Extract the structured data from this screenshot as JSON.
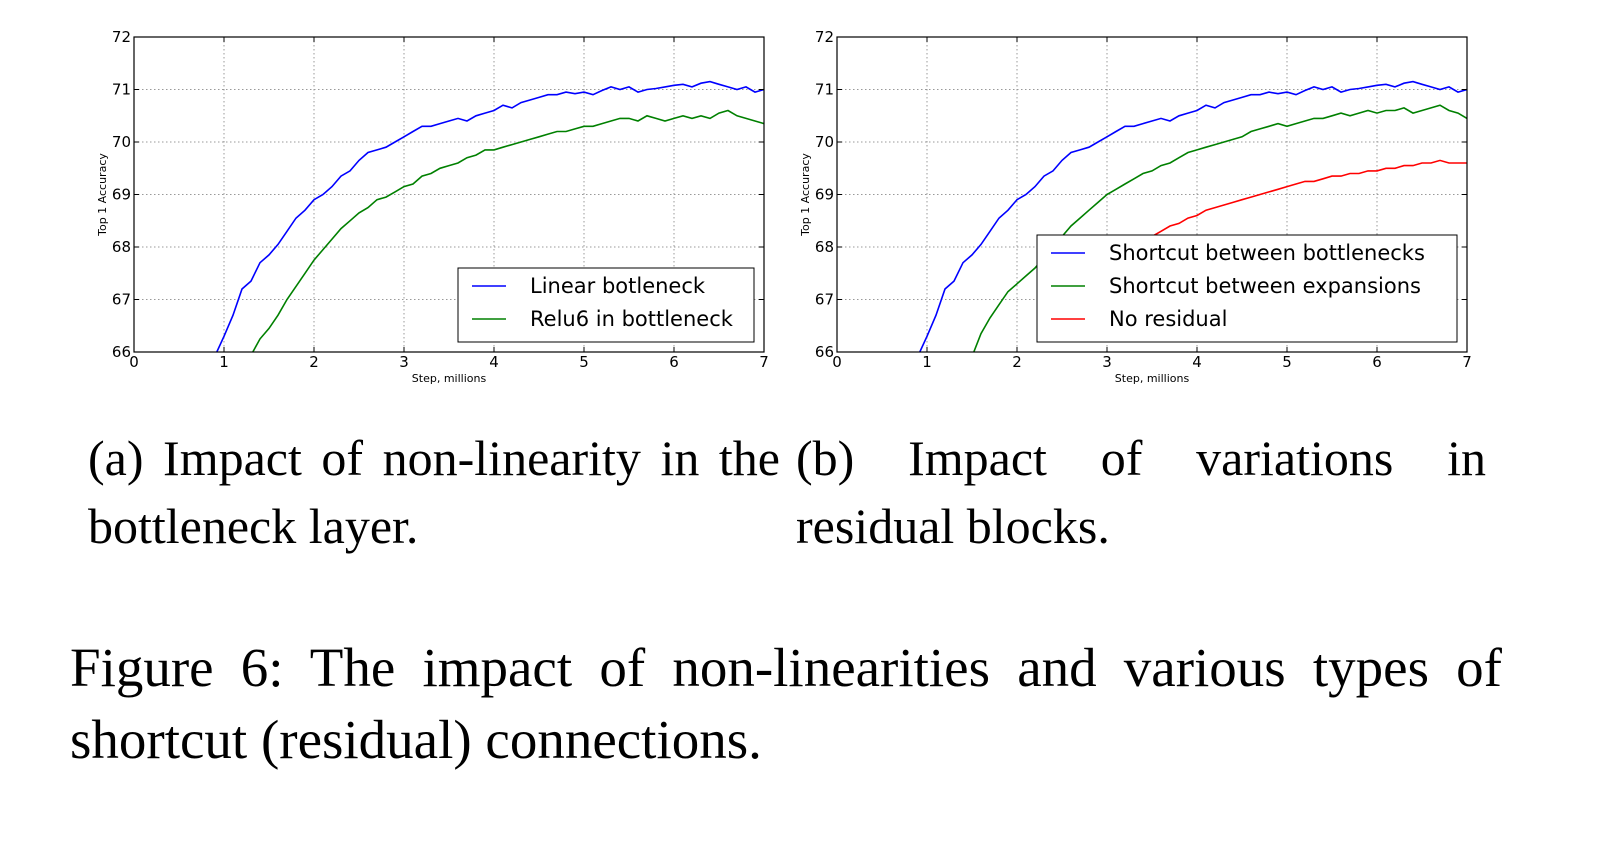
{
  "figure_caption": "Figure 6:  The impact of non-linearities and various types of shortcut (residual) connections.",
  "chart_data": [
    {
      "id": "a",
      "type": "line",
      "caption": "(a) Impact of non-linearity in the bottleneck layer.",
      "xlabel": "Step, millions",
      "ylabel": "Top 1 Accuracy",
      "xlim": [
        0,
        7
      ],
      "ylim": [
        66,
        72
      ],
      "xticks": [
        0,
        1,
        2,
        3,
        4,
        5,
        6,
        7
      ],
      "yticks": [
        66,
        67,
        68,
        69,
        70,
        71,
        72
      ],
      "grid": true,
      "legend_position": "lower-right",
      "series": [
        {
          "name": "Linear botleneck",
          "color": "#0000ff",
          "x": [
            0.92,
            1.0,
            1.1,
            1.2,
            1.3,
            1.4,
            1.5,
            1.6,
            1.7,
            1.8,
            1.9,
            2.0,
            2.1,
            2.2,
            2.3,
            2.4,
            2.5,
            2.6,
            2.7,
            2.8,
            2.9,
            3.0,
            3.1,
            3.2,
            3.3,
            3.4,
            3.5,
            3.6,
            3.7,
            3.8,
            3.9,
            4.0,
            4.1,
            4.2,
            4.3,
            4.4,
            4.5,
            4.6,
            4.7,
            4.8,
            4.9,
            5.0,
            5.1,
            5.2,
            5.3,
            5.4,
            5.5,
            5.6,
            5.7,
            5.8,
            5.9,
            6.0,
            6.1,
            6.2,
            6.3,
            6.4,
            6.5,
            6.6,
            6.7,
            6.8,
            6.9,
            7.0
          ],
          "y": [
            66.0,
            66.3,
            66.7,
            67.2,
            67.35,
            67.7,
            67.85,
            68.05,
            68.3,
            68.55,
            68.7,
            68.9,
            69.0,
            69.15,
            69.35,
            69.45,
            69.65,
            69.8,
            69.85,
            69.9,
            70.0,
            70.1,
            70.2,
            70.3,
            70.3,
            70.35,
            70.4,
            70.45,
            70.4,
            70.5,
            70.55,
            70.6,
            70.7,
            70.65,
            70.75,
            70.8,
            70.85,
            70.9,
            70.9,
            70.95,
            70.92,
            70.95,
            70.9,
            70.98,
            71.05,
            71.0,
            71.05,
            70.95,
            71.0,
            71.02,
            71.05,
            71.08,
            71.1,
            71.05,
            71.12,
            71.15,
            71.1,
            71.05,
            71.0,
            71.05,
            70.95,
            71.0
          ]
        },
        {
          "name": "Relu6 in bottleneck",
          "color": "#008000",
          "x": [
            1.32,
            1.4,
            1.5,
            1.6,
            1.7,
            1.8,
            1.9,
            2.0,
            2.1,
            2.2,
            2.3,
            2.4,
            2.5,
            2.6,
            2.7,
            2.8,
            2.9,
            3.0,
            3.1,
            3.2,
            3.3,
            3.4,
            3.5,
            3.6,
            3.7,
            3.8,
            3.9,
            4.0,
            4.1,
            4.2,
            4.3,
            4.4,
            4.5,
            4.6,
            4.7,
            4.8,
            4.9,
            5.0,
            5.1,
            5.2,
            5.3,
            5.4,
            5.5,
            5.6,
            5.7,
            5.8,
            5.9,
            6.0,
            6.1,
            6.2,
            6.3,
            6.4,
            6.5,
            6.6,
            6.7,
            6.8,
            6.9,
            7.0
          ],
          "y": [
            66.0,
            66.25,
            66.45,
            66.7,
            67.0,
            67.25,
            67.5,
            67.75,
            67.95,
            68.15,
            68.35,
            68.5,
            68.65,
            68.75,
            68.9,
            68.95,
            69.05,
            69.15,
            69.2,
            69.35,
            69.4,
            69.5,
            69.55,
            69.6,
            69.7,
            69.75,
            69.85,
            69.85,
            69.9,
            69.95,
            70.0,
            70.05,
            70.1,
            70.15,
            70.2,
            70.2,
            70.25,
            70.3,
            70.3,
            70.35,
            70.4,
            70.45,
            70.45,
            70.4,
            70.5,
            70.45,
            70.4,
            70.45,
            70.5,
            70.45,
            70.5,
            70.45,
            70.55,
            70.6,
            70.5,
            70.45,
            70.4,
            70.35
          ]
        }
      ]
    },
    {
      "id": "b",
      "type": "line",
      "caption": "(b)  Impact  of  variations  in residual blocks.",
      "xlabel": "Step, millions",
      "ylabel": "Top 1 Accuracy",
      "xlim": [
        0,
        7
      ],
      "ylim": [
        66,
        72
      ],
      "xticks": [
        0,
        1,
        2,
        3,
        4,
        5,
        6,
        7
      ],
      "yticks": [
        66,
        67,
        68,
        69,
        70,
        71,
        72
      ],
      "grid": true,
      "legend_position": "lower-right",
      "series": [
        {
          "name": "Shortcut between bottlenecks",
          "color": "#0000ff",
          "x": [
            0.92,
            1.0,
            1.1,
            1.2,
            1.3,
            1.4,
            1.5,
            1.6,
            1.7,
            1.8,
            1.9,
            2.0,
            2.1,
            2.2,
            2.3,
            2.4,
            2.5,
            2.6,
            2.7,
            2.8,
            2.9,
            3.0,
            3.1,
            3.2,
            3.3,
            3.4,
            3.5,
            3.6,
            3.7,
            3.8,
            3.9,
            4.0,
            4.1,
            4.2,
            4.3,
            4.4,
            4.5,
            4.6,
            4.7,
            4.8,
            4.9,
            5.0,
            5.1,
            5.2,
            5.3,
            5.4,
            5.5,
            5.6,
            5.7,
            5.8,
            5.9,
            6.0,
            6.1,
            6.2,
            6.3,
            6.4,
            6.5,
            6.6,
            6.7,
            6.8,
            6.9,
            7.0
          ],
          "y": [
            66.0,
            66.3,
            66.7,
            67.2,
            67.35,
            67.7,
            67.85,
            68.05,
            68.3,
            68.55,
            68.7,
            68.9,
            69.0,
            69.15,
            69.35,
            69.45,
            69.65,
            69.8,
            69.85,
            69.9,
            70.0,
            70.1,
            70.2,
            70.3,
            70.3,
            70.35,
            70.4,
            70.45,
            70.4,
            70.5,
            70.55,
            70.6,
            70.7,
            70.65,
            70.75,
            70.8,
            70.85,
            70.9,
            70.9,
            70.95,
            70.92,
            70.95,
            70.9,
            70.98,
            71.05,
            71.0,
            71.05,
            70.95,
            71.0,
            71.02,
            71.05,
            71.08,
            71.1,
            71.05,
            71.12,
            71.15,
            71.1,
            71.05,
            71.0,
            71.05,
            70.95,
            71.0
          ]
        },
        {
          "name": "Shortcut between expansions",
          "color": "#008000",
          "x": [
            1.52,
            1.6,
            1.7,
            1.8,
            1.9,
            2.0,
            2.1,
            2.2,
            2.3,
            2.4,
            2.5,
            2.6,
            2.7,
            2.8,
            2.9,
            3.0,
            3.1,
            3.2,
            3.3,
            3.4,
            3.5,
            3.6,
            3.7,
            3.8,
            3.9,
            4.0,
            4.1,
            4.2,
            4.3,
            4.4,
            4.5,
            4.6,
            4.7,
            4.8,
            4.9,
            5.0,
            5.1,
            5.2,
            5.3,
            5.4,
            5.5,
            5.6,
            5.7,
            5.8,
            5.9,
            6.0,
            6.1,
            6.2,
            6.3,
            6.4,
            6.5,
            6.6,
            6.7,
            6.8,
            6.9,
            7.0
          ],
          "y": [
            66.0,
            66.35,
            66.65,
            66.9,
            67.15,
            67.3,
            67.45,
            67.6,
            67.8,
            68.0,
            68.2,
            68.4,
            68.55,
            68.7,
            68.85,
            69.0,
            69.1,
            69.2,
            69.3,
            69.4,
            69.45,
            69.55,
            69.6,
            69.7,
            69.8,
            69.85,
            69.9,
            69.95,
            70.0,
            70.05,
            70.1,
            70.2,
            70.25,
            70.3,
            70.35,
            70.3,
            70.35,
            70.4,
            70.45,
            70.45,
            70.5,
            70.55,
            70.5,
            70.55,
            70.6,
            70.55,
            70.6,
            70.6,
            70.65,
            70.55,
            70.6,
            70.65,
            70.7,
            70.6,
            70.55,
            70.45
          ]
        },
        {
          "name": "No residual",
          "color": "#ff0000",
          "x": [
            2.4,
            2.5,
            2.6,
            2.7,
            2.8,
            2.9,
            3.0,
            3.1,
            3.2,
            3.3,
            3.4,
            3.5,
            3.6,
            3.7,
            3.8,
            3.9,
            4.0,
            4.1,
            4.2,
            4.3,
            4.4,
            4.5,
            4.6,
            4.7,
            4.8,
            4.9,
            5.0,
            5.1,
            5.2,
            5.3,
            5.4,
            5.5,
            5.6,
            5.7,
            5.8,
            5.9,
            6.0,
            6.1,
            6.2,
            6.3,
            6.4,
            6.5,
            6.6,
            6.7,
            6.8,
            6.9,
            7.0
          ],
          "y": [
            66.2,
            66.45,
            66.7,
            66.95,
            67.15,
            67.35,
            67.55,
            67.7,
            67.85,
            67.95,
            68.1,
            68.2,
            68.3,
            68.4,
            68.45,
            68.55,
            68.6,
            68.7,
            68.75,
            68.8,
            68.85,
            68.9,
            68.95,
            69.0,
            69.05,
            69.1,
            69.15,
            69.2,
            69.25,
            69.25,
            69.3,
            69.35,
            69.35,
            69.4,
            69.4,
            69.45,
            69.45,
            69.5,
            69.5,
            69.55,
            69.55,
            69.6,
            69.6,
            69.65,
            69.6,
            69.6,
            69.6
          ]
        }
      ]
    }
  ]
}
